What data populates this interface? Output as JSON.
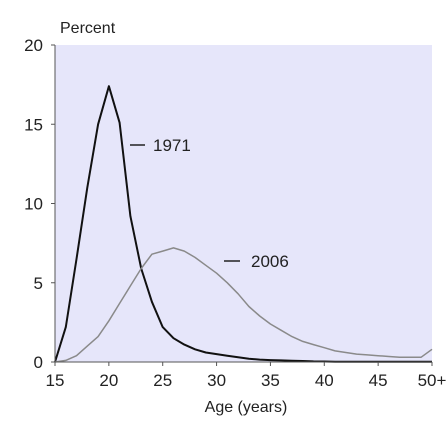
{
  "chart_data": {
    "type": "line",
    "title": "",
    "ylabel": "Percent",
    "xlabel": "Age (years)",
    "xlim": [
      15,
      50
    ],
    "ylim": [
      0,
      20
    ],
    "x_ticks": [
      15,
      20,
      25,
      30,
      35,
      40,
      45,
      50
    ],
    "x_tick_labels": [
      "15",
      "20",
      "25",
      "30",
      "35",
      "40",
      "45",
      "50+"
    ],
    "y_ticks": [
      0,
      5,
      10,
      15,
      20
    ],
    "y_tick_labels": [
      "0",
      "5",
      "10",
      "15",
      "20"
    ],
    "grid": false,
    "plot_background": "#e6e6fa",
    "series": [
      {
        "name": "1971",
        "color": "#111111",
        "x": [
          15,
          16,
          17,
          18,
          19,
          20,
          21,
          22,
          23,
          24,
          25,
          26,
          27,
          28,
          29,
          30,
          31,
          32,
          33,
          34,
          35,
          36,
          37,
          38,
          39,
          40,
          41,
          42,
          43,
          44,
          45,
          46,
          47,
          48,
          49,
          50
        ],
        "y": [
          0,
          2.2,
          6.5,
          11.0,
          15.0,
          17.4,
          15.1,
          9.2,
          5.9,
          3.8,
          2.2,
          1.5,
          1.1,
          0.8,
          0.6,
          0.5,
          0.4,
          0.3,
          0.2,
          0.15,
          0.12,
          0.1,
          0.08,
          0.06,
          0.04,
          0.03,
          0.02,
          0.02,
          0.02,
          0.01,
          0.01,
          0.01,
          0.01,
          0.01,
          0.01,
          0.01
        ]
      },
      {
        "name": "2006",
        "color": "#8a8a8a",
        "x": [
          15,
          16,
          17,
          18,
          19,
          20,
          21,
          22,
          23,
          24,
          25,
          26,
          27,
          28,
          29,
          30,
          31,
          32,
          33,
          34,
          35,
          36,
          37,
          38,
          39,
          40,
          41,
          42,
          43,
          44,
          45,
          46,
          47,
          48,
          49,
          50
        ],
        "y": [
          0,
          0.1,
          0.4,
          1.0,
          1.6,
          2.6,
          3.7,
          4.8,
          5.9,
          6.8,
          7.0,
          7.2,
          7.0,
          6.6,
          6.1,
          5.6,
          5.0,
          4.3,
          3.5,
          2.9,
          2.4,
          2.0,
          1.6,
          1.3,
          1.1,
          0.9,
          0.7,
          0.6,
          0.5,
          0.45,
          0.4,
          0.35,
          0.3,
          0.3,
          0.3,
          0.8
        ]
      }
    ]
  }
}
